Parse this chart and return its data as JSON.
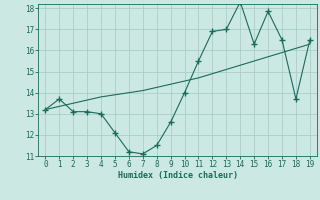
{
  "x": [
    0,
    1,
    2,
    3,
    4,
    5,
    6,
    7,
    8,
    9,
    10,
    11,
    12,
    13,
    14,
    15,
    16,
    17,
    18,
    19
  ],
  "y_data": [
    13.2,
    13.7,
    13.1,
    13.1,
    13.0,
    12.1,
    11.2,
    11.1,
    11.5,
    12.6,
    14.0,
    15.5,
    16.9,
    17.0,
    18.3,
    16.3,
    17.85,
    16.5,
    13.7,
    16.5
  ],
  "y_trend": [
    13.2,
    13.35,
    13.5,
    13.65,
    13.8,
    13.9,
    14.0,
    14.1,
    14.25,
    14.4,
    14.55,
    14.7,
    14.9,
    15.1,
    15.3,
    15.5,
    15.7,
    15.9,
    16.1,
    16.3
  ],
  "line_color": "#1a6b5a",
  "bg_color": "#cce8e3",
  "grid_color": "#aacfc8",
  "xlabel": "Humidex (Indice chaleur)",
  "ylim": [
    11,
    18
  ],
  "xlim": [
    -0.5,
    19.5
  ],
  "yticks": [
    11,
    12,
    13,
    14,
    15,
    16,
    17,
    18
  ],
  "xticks": [
    0,
    1,
    2,
    3,
    4,
    5,
    6,
    7,
    8,
    9,
    10,
    11,
    12,
    13,
    14,
    15,
    16,
    17,
    18,
    19
  ]
}
